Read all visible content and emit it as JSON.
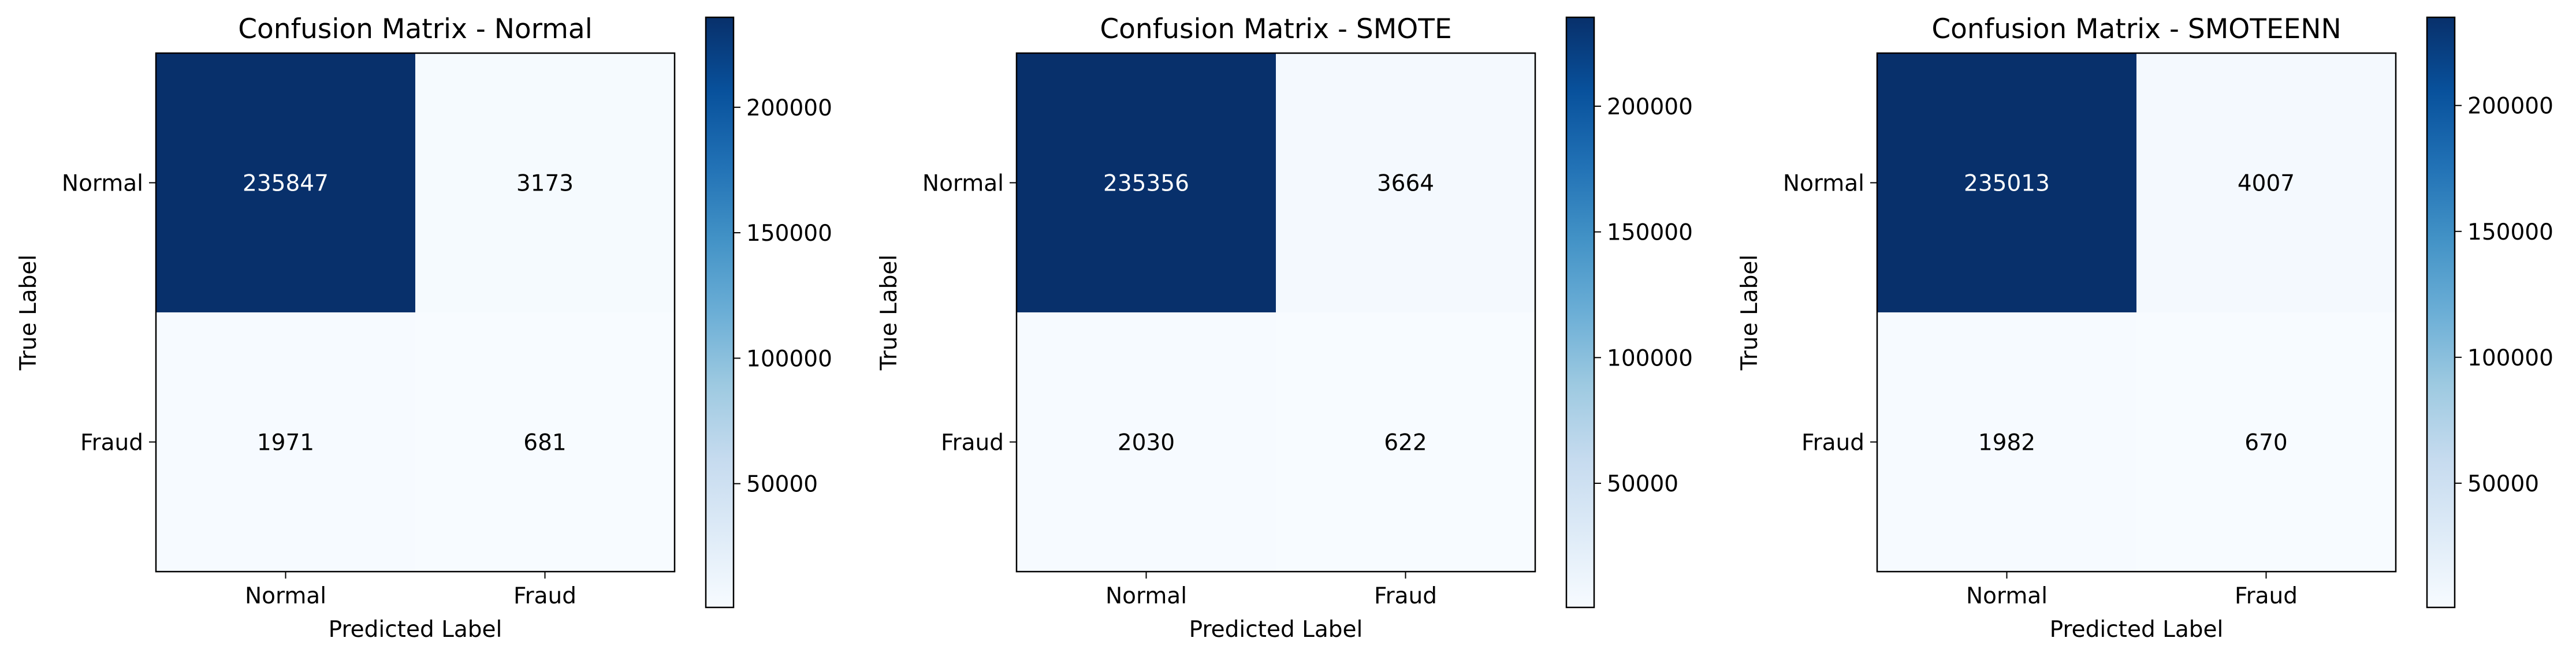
{
  "chart_data": [
    {
      "type": "heatmap",
      "title": "Confusion Matrix - Normal",
      "xlabel": "Predicted Label",
      "ylabel": "True Label",
      "x_categories": [
        "Normal",
        "Fraud"
      ],
      "y_categories": [
        "Normal",
        "Fraud"
      ],
      "matrix": [
        [
          235847,
          3173
        ],
        [
          1971,
          681
        ]
      ],
      "colormap": "Blues",
      "colorbar": {
        "min": 681,
        "max": 235847,
        "ticks": [
          50000,
          100000,
          150000,
          200000
        ],
        "tick_labels": [
          "50000",
          "100000",
          "150000",
          "200000"
        ]
      }
    },
    {
      "type": "heatmap",
      "title": "Confusion Matrix - SMOTE",
      "xlabel": "Predicted Label",
      "ylabel": "True Label",
      "x_categories": [
        "Normal",
        "Fraud"
      ],
      "y_categories": [
        "Normal",
        "Fraud"
      ],
      "matrix": [
        [
          235356,
          3664
        ],
        [
          2030,
          622
        ]
      ],
      "colormap": "Blues",
      "colorbar": {
        "min": 622,
        "max": 235356,
        "ticks": [
          50000,
          100000,
          150000,
          200000
        ],
        "tick_labels": [
          "50000",
          "100000",
          "150000",
          "200000"
        ]
      }
    },
    {
      "type": "heatmap",
      "title": "Confusion Matrix - SMOTEENN",
      "xlabel": "Predicted Label",
      "ylabel": "True Label",
      "x_categories": [
        "Normal",
        "Fraud"
      ],
      "y_categories": [
        "Normal",
        "Fraud"
      ],
      "matrix": [
        [
          235013,
          4007
        ],
        [
          1982,
          670
        ]
      ],
      "colormap": "Blues",
      "colorbar": {
        "min": 670,
        "max": 235013,
        "ticks": [
          50000,
          100000,
          150000,
          200000
        ],
        "tick_labels": [
          "50000",
          "100000",
          "150000",
          "200000"
        ]
      }
    }
  ],
  "colors": {
    "dark": "#08306b",
    "light": "#f7fbff",
    "text_dark_cell": "#ffffff",
    "text_light_cell": "#000000"
  }
}
